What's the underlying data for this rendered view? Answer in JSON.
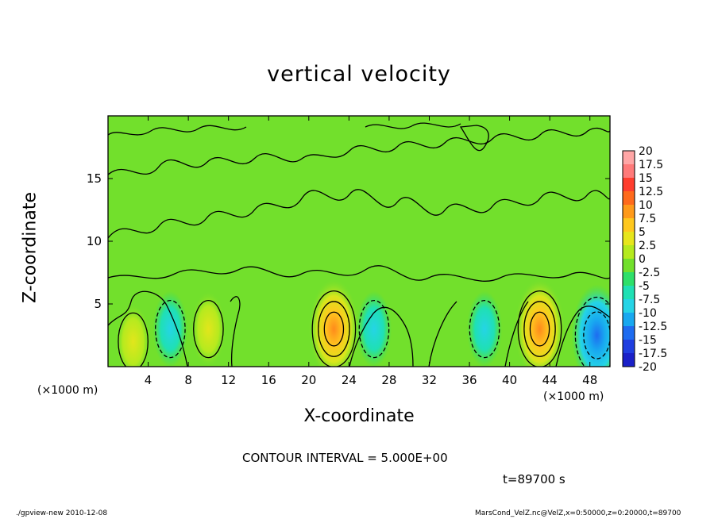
{
  "chart_data": {
    "type": "heatmap",
    "title": "vertical velocity",
    "xlabel": "X-coordinate",
    "ylabel": "Z-coordinate",
    "x_unit_left": "(×1000 m)",
    "x_unit_right": "(×1000 m)",
    "xlim": [
      0,
      50
    ],
    "ylim": [
      0,
      20
    ],
    "x_ticks": [
      4,
      8,
      12,
      16,
      20,
      24,
      28,
      32,
      36,
      40,
      44,
      48
    ],
    "y_ticks": [
      5,
      10,
      15
    ],
    "colorbar": {
      "labels": [
        "20",
        "17.5",
        "15",
        "12.5",
        "10",
        "7.5",
        "5",
        "2.5",
        "0",
        "-2.5",
        "-5",
        "-7.5",
        "-10",
        "-12.5",
        "-15",
        "-17.5",
        "-20"
      ],
      "colors": [
        "#ffa6a6",
        "#ff7a7a",
        "#ff3d2e",
        "#ff6a1c",
        "#ff9a1a",
        "#ffc81e",
        "#e7e61c",
        "#b5ea1e",
        "#72e02c",
        "#2ee06a",
        "#1fe0b4",
        "#25d4e6",
        "#18a8f0",
        "#1e6cf0",
        "#1f3ee0",
        "#1a20c8",
        "#6a18c0"
      ]
    },
    "features": [
      {
        "x": 22.5,
        "z": 3.0,
        "w": 12.5,
        "kind": "updraft"
      },
      {
        "x": 43.0,
        "z": 3.0,
        "w": 12.5,
        "kind": "updraft"
      },
      {
        "x": 10.0,
        "z": 3.0,
        "w": 5.0,
        "kind": "updraft"
      },
      {
        "x": 2.5,
        "z": 2.0,
        "w": 5.0,
        "kind": "updraft"
      },
      {
        "x": 6.2,
        "z": 3.0,
        "w": -5.0,
        "kind": "downdraft"
      },
      {
        "x": 26.5,
        "z": 3.0,
        "w": -5.0,
        "kind": "downdraft"
      },
      {
        "x": 37.5,
        "z": 3.0,
        "w": -5.0,
        "kind": "downdraft"
      },
      {
        "x": 48.7,
        "z": 2.5,
        "w": -10.0,
        "kind": "downdraft"
      }
    ],
    "contour_interval_text": "CONTOUR INTERVAL = 5.000E+00",
    "time_text": "t=89700 s"
  },
  "footer": {
    "left": "./gpview-new 2010-12-08",
    "right": "MarsCond_VelZ.nc@VelZ,x=0:50000,z=0:20000,t=89700"
  }
}
